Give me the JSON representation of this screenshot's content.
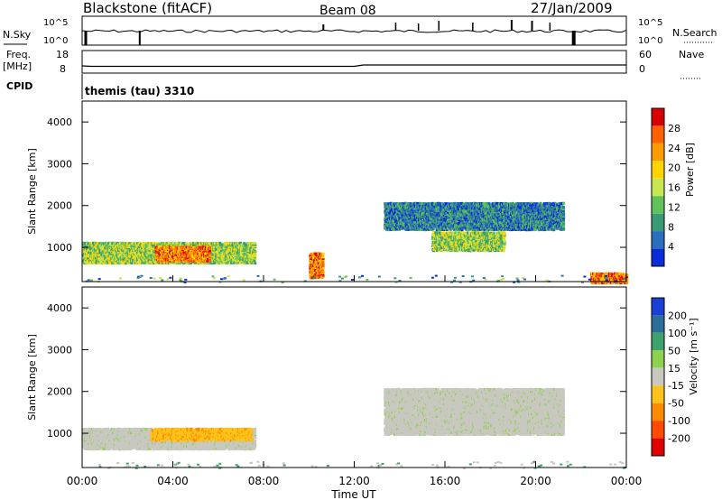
{
  "header": {
    "station": "Blackstone (fitACF)",
    "beam": "Beam 08",
    "date": "27/Jan/2009"
  },
  "side_labels": {
    "nsky": "N.Sky",
    "nsearch": "N.Search",
    "freq": "Freq.",
    "mhz": "[MHz]",
    "nave": "Nave",
    "cpid": "CPID"
  },
  "cpid_text": "themis (tau) 3310",
  "chart_data": [
    {
      "type": "line",
      "name": "noise-panel",
      "left_ticks": [
        "10^5",
        "10^0"
      ],
      "right_ticks": [
        "10^5",
        "10^0"
      ],
      "description_series": [
        "N.Sky",
        "N.Search"
      ]
    },
    {
      "type": "line",
      "name": "freq-nave-panel",
      "left_ticks": [
        "18",
        "8"
      ],
      "right_ticks": [
        "60",
        "0"
      ],
      "freq_level_MHz": 10
    },
    {
      "type": "heatmap",
      "name": "power-panel",
      "ylabel": "Slant Range [km]",
      "yticks": [
        "4000",
        "3000",
        "2000",
        "1000"
      ],
      "ylim": [
        180,
        4500
      ],
      "xlim_hours": [
        0,
        24
      ],
      "colorbar_label": "Power [dB]",
      "colorbar_ticks": [
        "28",
        "24",
        "20",
        "16",
        "12",
        "8",
        "4"
      ],
      "colorbar_colors": [
        "#d70000",
        "#ff6000",
        "#ff9a00",
        "#ffd400",
        "#c8e650",
        "#5fc25a",
        "#3a9a76",
        "#2a6fbf",
        "#0a2cd8"
      ],
      "echo_regions": [
        {
          "t0": 0.0,
          "t1": 7.6,
          "r0": 650,
          "r1": 1150,
          "level": "mid"
        },
        {
          "t0": 3.2,
          "t1": 5.6,
          "r0": 700,
          "r1": 1050,
          "level": "high"
        },
        {
          "t0": 13.3,
          "t1": 21.2,
          "r0": 1450,
          "r1": 2100,
          "level": "low"
        },
        {
          "t0": 15.4,
          "t1": 18.6,
          "r0": 950,
          "r1": 1400,
          "level": "mid"
        },
        {
          "t0": 10.0,
          "t1": 10.6,
          "r0": 300,
          "r1": 900,
          "level": "high"
        },
        {
          "t0": 22.4,
          "t1": 24.0,
          "r0": 180,
          "r1": 420,
          "level": "high"
        }
      ]
    },
    {
      "type": "heatmap",
      "name": "velocity-panel",
      "ylabel": "Slant Range [km]",
      "yticks": [
        "4000",
        "3000",
        "2000",
        "1000"
      ],
      "ylim": [
        180,
        4500
      ],
      "xlim_hours": [
        0,
        24
      ],
      "xticks": [
        "00:00",
        "04:00",
        "08:00",
        "12:00",
        "16:00",
        "20:00",
        "00:00"
      ],
      "xlabel": "Time UT",
      "colorbar_label": "Velocity [m s⁻¹]",
      "colorbar_ticks": [
        "200",
        "100",
        "50",
        "15",
        "-15",
        "-50",
        "-100",
        "-200"
      ],
      "colorbar_colors": [
        "#1a3fd6",
        "#2c6e9a",
        "#3ea36a",
        "#8ed14e",
        "#c8c8c0",
        "#ffc21a",
        "#ff8c00",
        "#ff4a00",
        "#e00000"
      ],
      "echo_regions": [
        {
          "t0": 0.0,
          "t1": 7.6,
          "r0": 650,
          "r1": 1150,
          "level": "ground-scatter+westward"
        },
        {
          "t0": 13.3,
          "t1": 21.2,
          "r0": 1000,
          "r1": 2100,
          "level": "ground-scatter"
        }
      ]
    }
  ]
}
